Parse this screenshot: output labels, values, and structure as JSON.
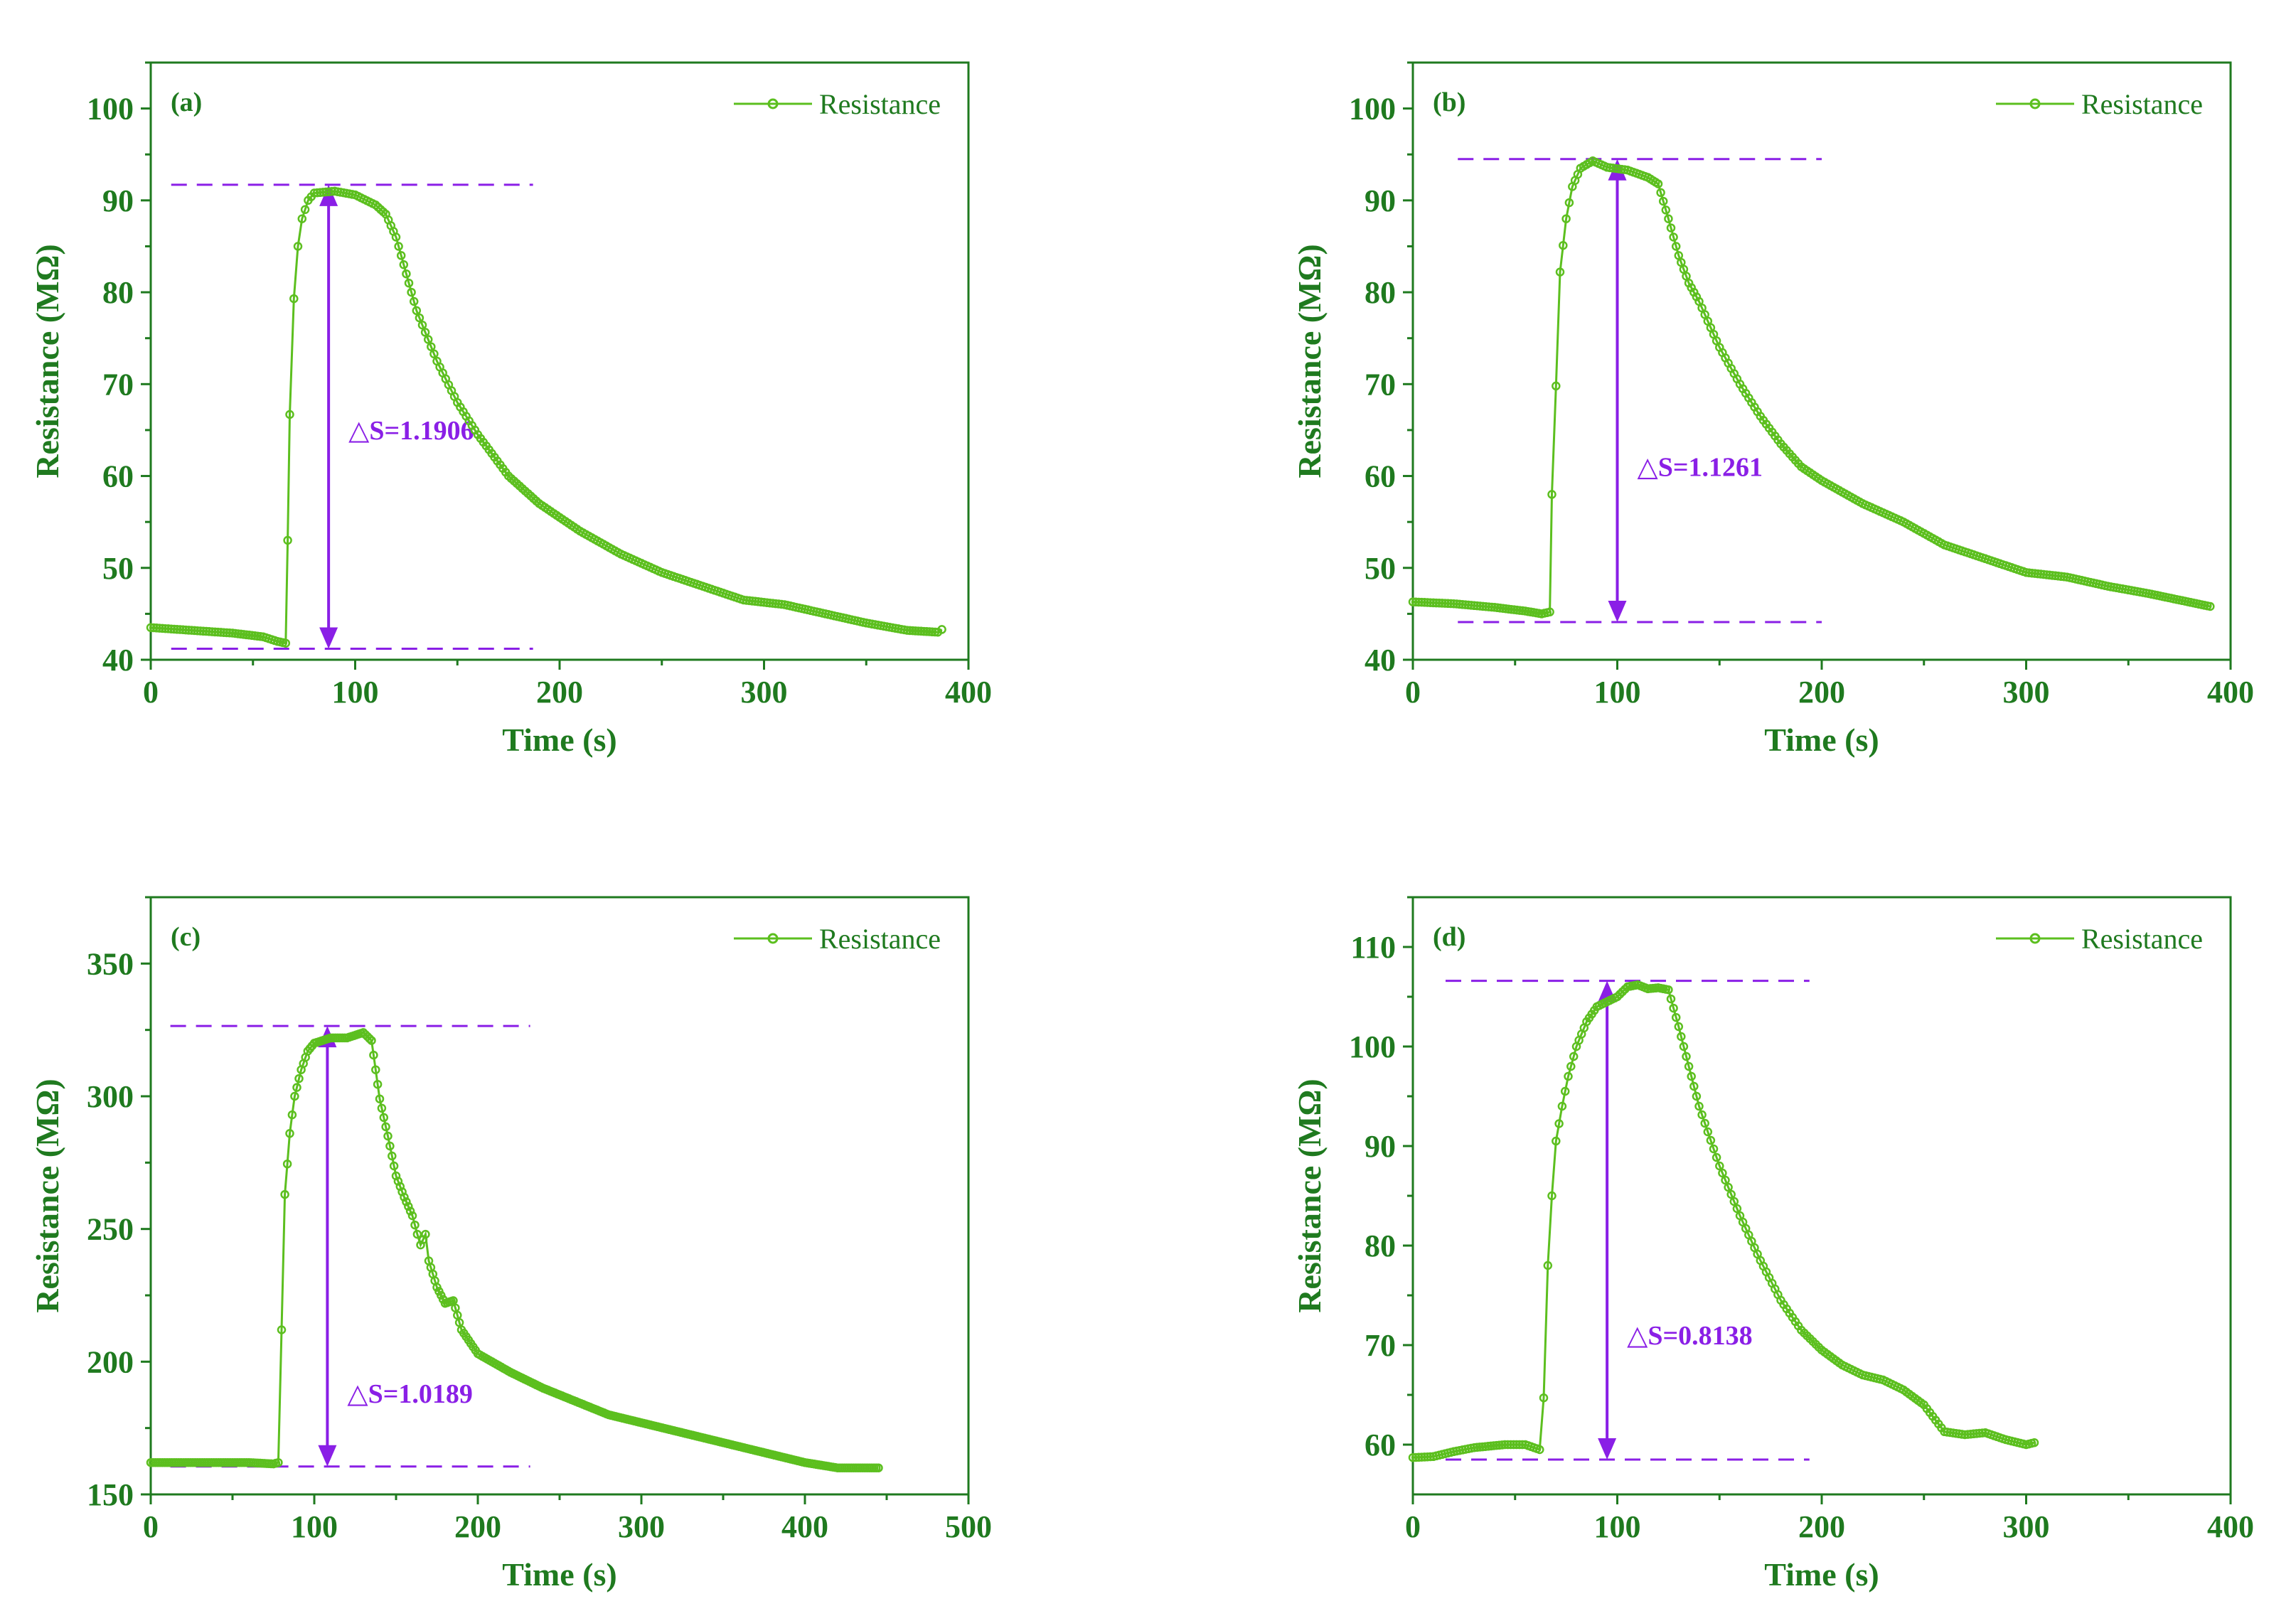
{
  "colors": {
    "series": "#5cbf1f",
    "axis": "#1f7a1f",
    "text": "#1f7a1f",
    "annotation": "#8a1fe6"
  },
  "chart_data": [
    {
      "type": "line",
      "panel_label": "(a)",
      "xlabel": "Time (s)",
      "ylabel": "Resistance (MΩ)",
      "xlim": [
        0,
        400
      ],
      "ylim": [
        40,
        105
      ],
      "xticks": [
        0,
        100,
        200,
        300,
        400
      ],
      "yticks": [
        40,
        50,
        60,
        70,
        80,
        90,
        100
      ],
      "legend": "Resistance",
      "legend_position": "top-right",
      "annotation": {
        "text": "△S=1.1906",
        "x": 87,
        "y_low": 41.2,
        "y_high": 91.7,
        "line_x_range": [
          10,
          187
        ],
        "label_y": 65
      },
      "series": [
        {
          "name": "Resistance",
          "points": [
            [
              0,
              43.5
            ],
            [
              20,
              43.2
            ],
            [
              40,
              42.9
            ],
            [
              55,
              42.5
            ],
            [
              62,
              42.0
            ],
            [
              66,
              41.8
            ],
            [
              67,
              53
            ],
            [
              68,
              66.7
            ],
            [
              70,
              79.3
            ],
            [
              72,
              85
            ],
            [
              74,
              88
            ],
            [
              77,
              90
            ],
            [
              80,
              90.8
            ],
            [
              90,
              91.0
            ],
            [
              100,
              90.6
            ],
            [
              110,
              89.5
            ],
            [
              115,
              88.5
            ],
            [
              120,
              86
            ],
            [
              125,
              82
            ],
            [
              130,
              78
            ],
            [
              140,
              72.5
            ],
            [
              150,
              68
            ],
            [
              160,
              64.5
            ],
            [
              175,
              60
            ],
            [
              190,
              57
            ],
            [
              210,
              54
            ],
            [
              230,
              51.5
            ],
            [
              250,
              49.5
            ],
            [
              270,
              48
            ],
            [
              290,
              46.5
            ],
            [
              310,
              46
            ],
            [
              330,
              45
            ],
            [
              350,
              44
            ],
            [
              370,
              43.2
            ],
            [
              385,
              43
            ],
            [
              387,
              43.3
            ]
          ]
        }
      ]
    },
    {
      "type": "line",
      "panel_label": "(b)",
      "xlabel": "Time (s)",
      "ylabel": "Resistance (MΩ)",
      "xlim": [
        0,
        400
      ],
      "ylim": [
        40,
        105
      ],
      "xticks": [
        0,
        100,
        200,
        300,
        400
      ],
      "yticks": [
        40,
        50,
        60,
        70,
        80,
        90,
        100
      ],
      "legend": "Resistance",
      "legend_position": "top-right",
      "annotation": {
        "text": "△S=1.1261",
        "x": 100,
        "y_low": 44.1,
        "y_high": 94.5,
        "line_x_range": [
          22,
          200
        ],
        "label_y": 61
      },
      "series": [
        {
          "name": "Resistance",
          "points": [
            [
              0,
              46.3
            ],
            [
              20,
              46.1
            ],
            [
              40,
              45.7
            ],
            [
              55,
              45.3
            ],
            [
              63,
              45.0
            ],
            [
              67,
              45.2
            ],
            [
              68,
              58
            ],
            [
              70,
              69.8
            ],
            [
              72,
              82.2
            ],
            [
              75,
              88
            ],
            [
              78,
              91.5
            ],
            [
              82,
              93.5
            ],
            [
              88,
              94.3
            ],
            [
              95,
              93.6
            ],
            [
              105,
              93.3
            ],
            [
              115,
              92.5
            ],
            [
              120,
              91.8
            ],
            [
              125,
              88
            ],
            [
              130,
              84
            ],
            [
              135,
              81
            ],
            [
              140,
              79
            ],
            [
              150,
              74
            ],
            [
              160,
              70
            ],
            [
              170,
              66.5
            ],
            [
              180,
              63.5
            ],
            [
              190,
              61
            ],
            [
              200,
              59.5
            ],
            [
              220,
              57
            ],
            [
              240,
              55
            ],
            [
              260,
              52.5
            ],
            [
              280,
              51
            ],
            [
              300,
              49.5
            ],
            [
              320,
              49
            ],
            [
              340,
              48
            ],
            [
              360,
              47.2
            ],
            [
              375,
              46.5
            ],
            [
              390,
              45.8
            ]
          ]
        }
      ]
    },
    {
      "type": "line",
      "panel_label": "(c)",
      "xlabel": "Time (s)",
      "ylabel": "Resistance (MΩ)",
      "xlim": [
        0,
        500
      ],
      "ylim": [
        150,
        375
      ],
      "xticks": [
        0,
        100,
        200,
        300,
        400,
        500
      ],
      "yticks": [
        150,
        200,
        250,
        300,
        350
      ],
      "legend": "Resistance",
      "legend_position": "top-right",
      "annotation": {
        "text": "△S=1.0189",
        "x": 108,
        "y_low": 160.5,
        "y_high": 326.5,
        "line_x_range": [
          12,
          232
        ],
        "label_y": 188
      },
      "series": [
        {
          "name": "Resistance",
          "points": [
            [
              0,
              162
            ],
            [
              30,
              162
            ],
            [
              60,
              162
            ],
            [
              75,
              161.5
            ],
            [
              78,
              162
            ],
            [
              80,
              212
            ],
            [
              82,
              263
            ],
            [
              85,
              286
            ],
            [
              88,
              300
            ],
            [
              92,
              310
            ],
            [
              96,
              317
            ],
            [
              100,
              320
            ],
            [
              110,
              322
            ],
            [
              120,
              322
            ],
            [
              130,
              324
            ],
            [
              135,
              321
            ],
            [
              140,
              299
            ],
            [
              145,
              285
            ],
            [
              150,
              270
            ],
            [
              155,
              262
            ],
            [
              160,
              255
            ],
            [
              163,
              248
            ],
            [
              165,
              244
            ],
            [
              168,
              248
            ],
            [
              170,
              238
            ],
            [
              175,
              228
            ],
            [
              180,
              222
            ],
            [
              185,
              223
            ],
            [
              190,
              212
            ],
            [
              200,
              203
            ],
            [
              220,
              196
            ],
            [
              240,
              190
            ],
            [
              260,
              185
            ],
            [
              280,
              180
            ],
            [
              300,
              177
            ],
            [
              320,
              174
            ],
            [
              340,
              171
            ],
            [
              360,
              168
            ],
            [
              380,
              165
            ],
            [
              400,
              162
            ],
            [
              420,
              160
            ],
            [
              445,
              160
            ]
          ]
        }
      ]
    },
    {
      "type": "line",
      "panel_label": "(d)",
      "xlabel": "Time (s)",
      "ylabel": "Resistance (MΩ)",
      "xlim": [
        0,
        400
      ],
      "ylim": [
        55,
        115
      ],
      "xticks": [
        0,
        100,
        200,
        300,
        400
      ],
      "yticks": [
        60,
        70,
        80,
        90,
        100,
        110
      ],
      "legend": "Resistance",
      "legend_position": "top-right",
      "annotation": {
        "text": "△S=0.8138",
        "x": 95,
        "y_low": 58.5,
        "y_high": 106.6,
        "line_x_range": [
          16,
          194
        ],
        "label_y": 71
      },
      "series": [
        {
          "name": "Resistance",
          "points": [
            [
              0,
              58.7
            ],
            [
              10,
              58.8
            ],
            [
              20,
              59.3
            ],
            [
              30,
              59.7
            ],
            [
              45,
              60.0
            ],
            [
              55,
              60.0
            ],
            [
              62,
              59.5
            ],
            [
              64,
              64.7
            ],
            [
              66,
              78
            ],
            [
              68,
              85
            ],
            [
              70,
              90.5
            ],
            [
              73,
              94
            ],
            [
              76,
              97
            ],
            [
              80,
              100
            ],
            [
              85,
              102.5
            ],
            [
              90,
              104
            ],
            [
              95,
              104.5
            ],
            [
              100,
              105
            ],
            [
              105,
              106
            ],
            [
              110,
              106.2
            ],
            [
              115,
              105.8
            ],
            [
              120,
              105.9
            ],
            [
              125,
              105.7
            ],
            [
              130,
              102
            ],
            [
              135,
              98
            ],
            [
              140,
              94
            ],
            [
              150,
              88
            ],
            [
              160,
              83
            ],
            [
              170,
              78.5
            ],
            [
              180,
              74.5
            ],
            [
              190,
              71.5
            ],
            [
              200,
              69.5
            ],
            [
              210,
              68
            ],
            [
              220,
              67
            ],
            [
              230,
              66.5
            ],
            [
              240,
              65.5
            ],
            [
              250,
              64
            ],
            [
              260,
              61.3
            ],
            [
              270,
              61
            ],
            [
              280,
              61.2
            ],
            [
              290,
              60.5
            ],
            [
              300,
              60
            ],
            [
              304,
              60.2
            ]
          ]
        }
      ]
    }
  ]
}
